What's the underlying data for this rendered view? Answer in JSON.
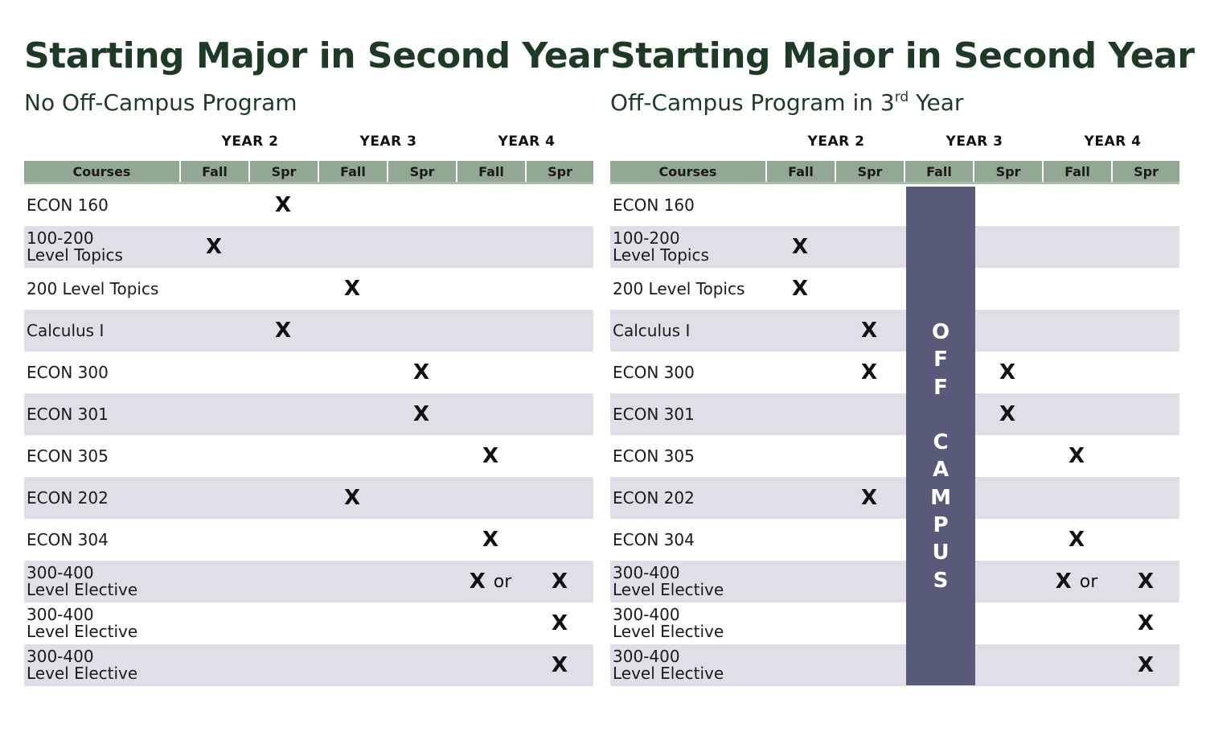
{
  "left": {
    "title": "Starting Major in Second Year",
    "subtitle": "No Off-Campus Program",
    "years": [
      "YEAR 2",
      "YEAR 3",
      "YEAR 4"
    ],
    "columns": [
      "Courses",
      "Fall",
      "Spr",
      "Fall",
      "Spr",
      "Fall",
      "Spr"
    ],
    "rows": [
      {
        "course": "ECON 160",
        "marks": [
          "",
          "X",
          "",
          "",
          "",
          ""
        ]
      },
      {
        "course": "100-200\nLevel Topics",
        "marks": [
          "X",
          "",
          "",
          "",
          "",
          ""
        ]
      },
      {
        "course": "200 Level Topics",
        "marks": [
          "",
          "",
          "X",
          "",
          "",
          ""
        ]
      },
      {
        "course": "Calculus I",
        "marks": [
          "",
          "X",
          "",
          "",
          "",
          ""
        ]
      },
      {
        "course": "ECON 300",
        "marks": [
          "",
          "",
          "",
          "X",
          "",
          ""
        ]
      },
      {
        "course": "ECON 301",
        "marks": [
          "",
          "",
          "",
          "X",
          "",
          ""
        ]
      },
      {
        "course": "ECON 305",
        "marks": [
          "",
          "",
          "",
          "",
          "X",
          ""
        ]
      },
      {
        "course": "ECON 202",
        "marks": [
          "",
          "",
          "X",
          "",
          "",
          ""
        ]
      },
      {
        "course": "ECON 304",
        "marks": [
          "",
          "",
          "",
          "",
          "X",
          ""
        ]
      },
      {
        "course": "300-400\nLevel Elective",
        "marks": [
          "",
          "",
          "",
          "",
          "X or",
          "X"
        ]
      },
      {
        "course": "300-400\nLevel Elective",
        "marks": [
          "",
          "",
          "",
          "",
          "",
          "X"
        ]
      },
      {
        "course": "300-400\nLevel Elective",
        "marks": [
          "",
          "",
          "",
          "",
          "",
          "X"
        ]
      }
    ]
  },
  "right": {
    "title": "Starting Major in Second Year",
    "subtitle_main": "Off-Campus Program in 3",
    "subtitle_sup": "rd",
    "subtitle_end": " Year",
    "years": [
      "YEAR 2",
      "YEAR 3",
      "YEAR 4"
    ],
    "columns": [
      "Courses",
      "Fall",
      "Spr",
      "Fall",
      "Spr",
      "Fall",
      "Spr"
    ],
    "off_campus_label": "O\nF\nF\n\nC\nA\nM\nP\nU\nS",
    "off_campus_color": "#585a7a",
    "rows": [
      {
        "course": "ECON 160",
        "marks": [
          "",
          "",
          "",
          "",
          "",
          ""
        ]
      },
      {
        "course": "100-200\nLevel Topics",
        "marks": [
          "X",
          "",
          "",
          "",
          "",
          ""
        ]
      },
      {
        "course": "200 Level Topics",
        "marks": [
          "X",
          "",
          "",
          "",
          "",
          ""
        ]
      },
      {
        "course": "Calculus I",
        "marks": [
          "",
          "X",
          "",
          "",
          "",
          ""
        ]
      },
      {
        "course": "ECON 300",
        "marks": [
          "",
          "X",
          "",
          "X",
          "",
          ""
        ]
      },
      {
        "course": "ECON 301",
        "marks": [
          "",
          "",
          "",
          "X",
          "",
          ""
        ]
      },
      {
        "course": "ECON 305",
        "marks": [
          "",
          "",
          "",
          "",
          "X",
          ""
        ]
      },
      {
        "course": "ECON 202",
        "marks": [
          "",
          "X",
          "",
          "",
          "",
          ""
        ]
      },
      {
        "course": "ECON 304",
        "marks": [
          "",
          "",
          "",
          "",
          "X",
          ""
        ]
      },
      {
        "course": "300-400\nLevel Elective",
        "marks": [
          "",
          "",
          "",
          "",
          "X or",
          "X"
        ]
      },
      {
        "course": "300-400\nLevel Elective",
        "marks": [
          "",
          "",
          "",
          "",
          "",
          "X"
        ]
      },
      {
        "course": "300-400\nLevel Elective",
        "marks": [
          "",
          "",
          "",
          "",
          "",
          "X"
        ]
      }
    ]
  },
  "colors": {
    "header": "#93a893",
    "row_shade": "#dfdfe8",
    "title": "#1f3a24"
  }
}
